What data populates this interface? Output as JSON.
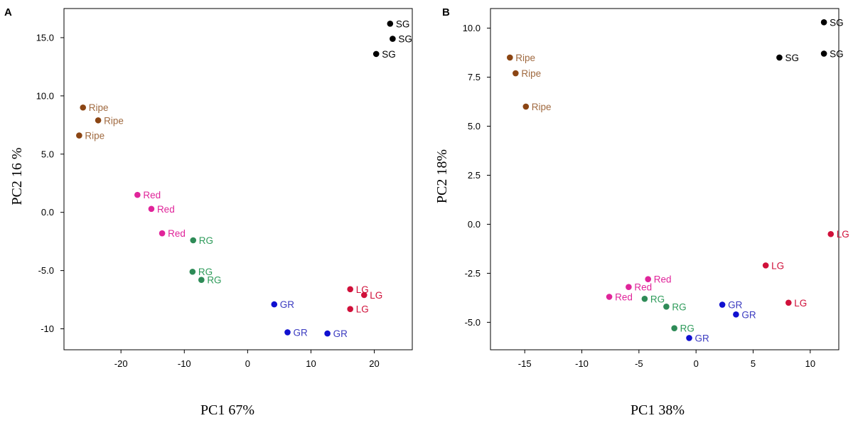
{
  "chart_data": [
    {
      "panel_label": "A",
      "type": "scatter",
      "title": "",
      "xlabel": "PC1 67%",
      "ylabel": "PC2 16 %",
      "xlim": [
        -29,
        26
      ],
      "ylim": [
        -11.8,
        17.5
      ],
      "xticks": [
        {
          "v": -20,
          "label": "-20"
        },
        {
          "v": -10,
          "label": "-10"
        },
        {
          "v": 0,
          "label": "0"
        },
        {
          "v": 10,
          "label": "10"
        },
        {
          "v": 20,
          "label": "20"
        }
      ],
      "yticks": [
        {
          "v": 15,
          "label": "15.0"
        },
        {
          "v": 10,
          "label": "10.0"
        },
        {
          "v": 5,
          "label": "5.0"
        },
        {
          "v": 0,
          "label": "0.0"
        },
        {
          "v": -5,
          "label": "-5.0"
        },
        {
          "v": -10,
          "label": "-10"
        }
      ],
      "points": [
        {
          "x": 22.5,
          "y": 16.2,
          "label": "SG",
          "group": "SG"
        },
        {
          "x": 22.9,
          "y": 14.9,
          "label": "SG",
          "group": "SG"
        },
        {
          "x": 20.3,
          "y": 13.6,
          "label": "SG",
          "group": "SG"
        },
        {
          "x": -26.0,
          "y": 9.0,
          "label": "Ripe",
          "group": "Ripe"
        },
        {
          "x": -23.6,
          "y": 7.9,
          "label": "Ripe",
          "group": "Ripe"
        },
        {
          "x": -26.6,
          "y": 6.6,
          "label": "Ripe",
          "group": "Ripe"
        },
        {
          "x": -17.4,
          "y": 1.5,
          "label": "Red",
          "group": "Red"
        },
        {
          "x": -15.2,
          "y": 0.3,
          "label": "Red",
          "group": "Red"
        },
        {
          "x": -13.5,
          "y": -1.8,
          "label": "Red",
          "group": "Red"
        },
        {
          "x": -8.6,
          "y": -2.4,
          "label": "RG",
          "group": "RG"
        },
        {
          "x": -8.7,
          "y": -5.1,
          "label": "RG",
          "group": "RG"
        },
        {
          "x": -7.3,
          "y": -5.8,
          "label": "RG",
          "group": "RG"
        },
        {
          "x": 16.2,
          "y": -6.6,
          "label": "LG",
          "group": "LG"
        },
        {
          "x": 18.4,
          "y": -7.1,
          "label": "LG",
          "group": "LG"
        },
        {
          "x": 16.2,
          "y": -8.3,
          "label": "LG",
          "group": "LG"
        },
        {
          "x": 4.2,
          "y": -7.9,
          "label": "GR",
          "group": "GR"
        },
        {
          "x": 6.3,
          "y": -10.3,
          "label": "GR",
          "group": "GR"
        },
        {
          "x": 12.6,
          "y": -10.4,
          "label": "GR",
          "group": "GR"
        }
      ]
    },
    {
      "panel_label": "B",
      "type": "scatter",
      "title": "",
      "xlabel": "PC1 38%",
      "ylabel": "PC2 18%",
      "xlim": [
        -18,
        12.5
      ],
      "ylim": [
        -6.4,
        11.0
      ],
      "xticks": [
        {
          "v": -15,
          "label": "-15"
        },
        {
          "v": -10,
          "label": "-10"
        },
        {
          "v": -5,
          "label": "-5"
        },
        {
          "v": 0,
          "label": "0"
        },
        {
          "v": 5,
          "label": "5"
        },
        {
          "v": 10,
          "label": "10"
        }
      ],
      "yticks": [
        {
          "v": 10,
          "label": "10.0"
        },
        {
          "v": 7.5,
          "label": "7.5"
        },
        {
          "v": 5,
          "label": "5.0"
        },
        {
          "v": 2.5,
          "label": "2.5"
        },
        {
          "v": 0,
          "label": "0.0"
        },
        {
          "v": -2.5,
          "label": "-2.5"
        },
        {
          "v": -5,
          "label": "-5.0"
        }
      ],
      "points": [
        {
          "x": 11.2,
          "y": 10.3,
          "label": "SG",
          "group": "SG"
        },
        {
          "x": 11.2,
          "y": 8.7,
          "label": "SG",
          "group": "SG"
        },
        {
          "x": 7.3,
          "y": 8.5,
          "label": "SG",
          "group": "SG"
        },
        {
          "x": -16.3,
          "y": 8.5,
          "label": "Ripe",
          "group": "Ripe"
        },
        {
          "x": -15.8,
          "y": 7.7,
          "label": "Ripe",
          "group": "Ripe"
        },
        {
          "x": -14.9,
          "y": 6.0,
          "label": "Ripe",
          "group": "Ripe"
        },
        {
          "x": -4.2,
          "y": -2.8,
          "label": "Red",
          "group": "Red"
        },
        {
          "x": -5.9,
          "y": -3.2,
          "label": "Red",
          "group": "Red"
        },
        {
          "x": -7.6,
          "y": -3.7,
          "label": "Red",
          "group": "Red"
        },
        {
          "x": -4.5,
          "y": -3.8,
          "label": "RG",
          "group": "RG"
        },
        {
          "x": -2.6,
          "y": -4.2,
          "label": "RG",
          "group": "RG"
        },
        {
          "x": -1.9,
          "y": -5.3,
          "label": "RG",
          "group": "RG"
        },
        {
          "x": 11.8,
          "y": -0.5,
          "label": "LG",
          "group": "LG"
        },
        {
          "x": 6.1,
          "y": -2.1,
          "label": "LG",
          "group": "LG"
        },
        {
          "x": 8.1,
          "y": -4.0,
          "label": "LG",
          "group": "LG"
        },
        {
          "x": 2.3,
          "y": -4.1,
          "label": "GR",
          "group": "GR"
        },
        {
          "x": 3.5,
          "y": -4.6,
          "label": "GR",
          "group": "GR"
        },
        {
          "x": -0.6,
          "y": -5.8,
          "label": "GR",
          "group": "GR"
        }
      ]
    }
  ],
  "colors": {
    "SG": {
      "dot": "#000000",
      "text": "#000000"
    },
    "Ripe": {
      "dot": "#8b4513",
      "text": "#a06a40"
    },
    "Red": {
      "dot": "#e0249a",
      "text": "#e0249a"
    },
    "RG": {
      "dot": "#2e8b57",
      "text": "#2e9b5a"
    },
    "LG": {
      "dot": "#d0103a",
      "text": "#d0103a"
    },
    "GR": {
      "dot": "#1010d0",
      "text": "#3a3ac0"
    }
  }
}
